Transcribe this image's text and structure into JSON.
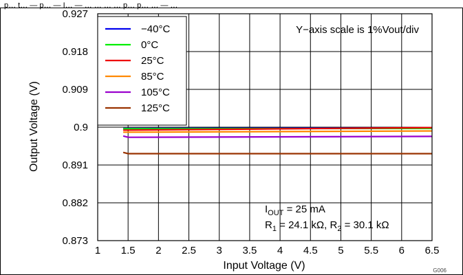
{
  "page_header": "p… t… — p… — I… — … … … … p… p… … — …",
  "chart_data": {
    "type": "line",
    "xlabel": "Input Voltage (V)",
    "ylabel": "Output Voltage (V)",
    "xlim": [
      1,
      6.5
    ],
    "ylim": [
      0.873,
      0.927
    ],
    "x_ticks": [
      "1",
      "1.5",
      "2",
      "2.5",
      "3",
      "3.5",
      "4",
      "4.5",
      "5",
      "5.5",
      "6",
      "6.5"
    ],
    "y_ticks": [
      "0.927",
      "0.918",
      "0.909",
      "0.9",
      "0.891",
      "0.882",
      "0.873"
    ],
    "x_tick_values": [
      1,
      1.5,
      2,
      2.5,
      3,
      3.5,
      4,
      4.5,
      5,
      5.5,
      6,
      6.5
    ],
    "y_tick_values": [
      0.927,
      0.918,
      0.909,
      0.9,
      0.891,
      0.882,
      0.873
    ],
    "grid": true,
    "legend_position": "top-left",
    "series": [
      {
        "name": "−40°C",
        "color": "#0000ee",
        "x": [
          1.42,
          6.5
        ],
        "y": [
          0.8997,
          0.8998
        ]
      },
      {
        "name": "0°C",
        "color": "#00ee00",
        "x": [
          1.42,
          6.5
        ],
        "y": [
          0.8996,
          0.8997
        ]
      },
      {
        "name": "25°C",
        "color": "#ee0000",
        "x": [
          1.42,
          6.5
        ],
        "y": [
          0.8993,
          0.8999
        ]
      },
      {
        "name": "85°C",
        "color": "#ff8800",
        "x": [
          1.42,
          6.5
        ],
        "y": [
          0.8988,
          0.8991
        ]
      },
      {
        "name": "105°C",
        "color": "#9900cc",
        "x": [
          1.42,
          1.5,
          6.5
        ],
        "y": [
          0.8979,
          0.8976,
          0.8978
        ]
      },
      {
        "name": "125°C",
        "color": "#993300",
        "x": [
          1.42,
          1.5,
          6.5
        ],
        "y": [
          0.894,
          0.8937,
          0.8937
        ]
      }
    ],
    "annotations": {
      "scale_note": "Y−axis scale is 1%Vout/div",
      "iout_main": "I",
      "iout_sub": "OUT",
      "iout_rest": " = 25 mA",
      "r1_main": "R",
      "r1_sub": "1",
      "r1_rest": " = 24.1 kΩ, R",
      "r2_sub": "2",
      "r2_rest": " = 30.1 kΩ"
    },
    "figure_code": "G006"
  }
}
